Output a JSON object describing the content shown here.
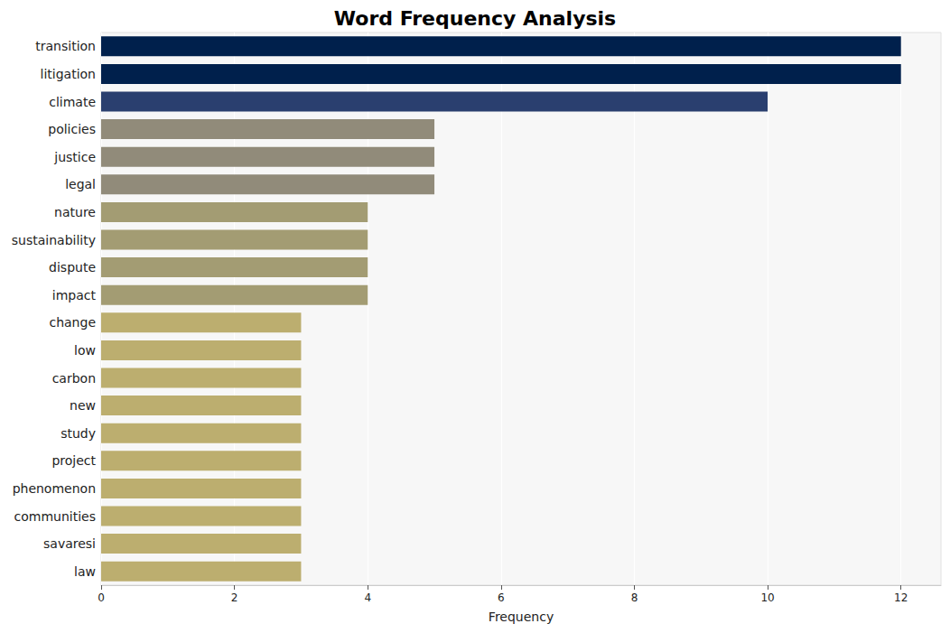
{
  "chart_data": {
    "type": "bar",
    "orientation": "horizontal",
    "title": "Word Frequency Analysis",
    "x_label": "Frequency",
    "categories": [
      "transition",
      "litigation",
      "climate",
      "policies",
      "justice",
      "legal",
      "nature",
      "sustainability",
      "dispute",
      "impact",
      "change",
      "low",
      "carbon",
      "new",
      "study",
      "project",
      "phenomenon",
      "communities",
      "savaresi",
      "law"
    ],
    "values": [
      12,
      12,
      10,
      5,
      5,
      5,
      4,
      4,
      4,
      4,
      3,
      3,
      3,
      3,
      3,
      3,
      3,
      3,
      3,
      3
    ],
    "colors": [
      "#00204c",
      "#00204c",
      "#2a3f6f",
      "#918b7a",
      "#918b7a",
      "#918b7a",
      "#a39c73",
      "#a39c73",
      "#a39c73",
      "#a39c73",
      "#bcae6f",
      "#bcae6f",
      "#bcae6f",
      "#bcae6f",
      "#bcae6f",
      "#bcae6f",
      "#bcae6f",
      "#bcae6f",
      "#bcae6f",
      "#bcae6f"
    ],
    "xlim": [
      0,
      12.6
    ],
    "xticks": [
      0,
      2,
      4,
      6,
      8,
      10,
      12
    ],
    "grid": true
  }
}
